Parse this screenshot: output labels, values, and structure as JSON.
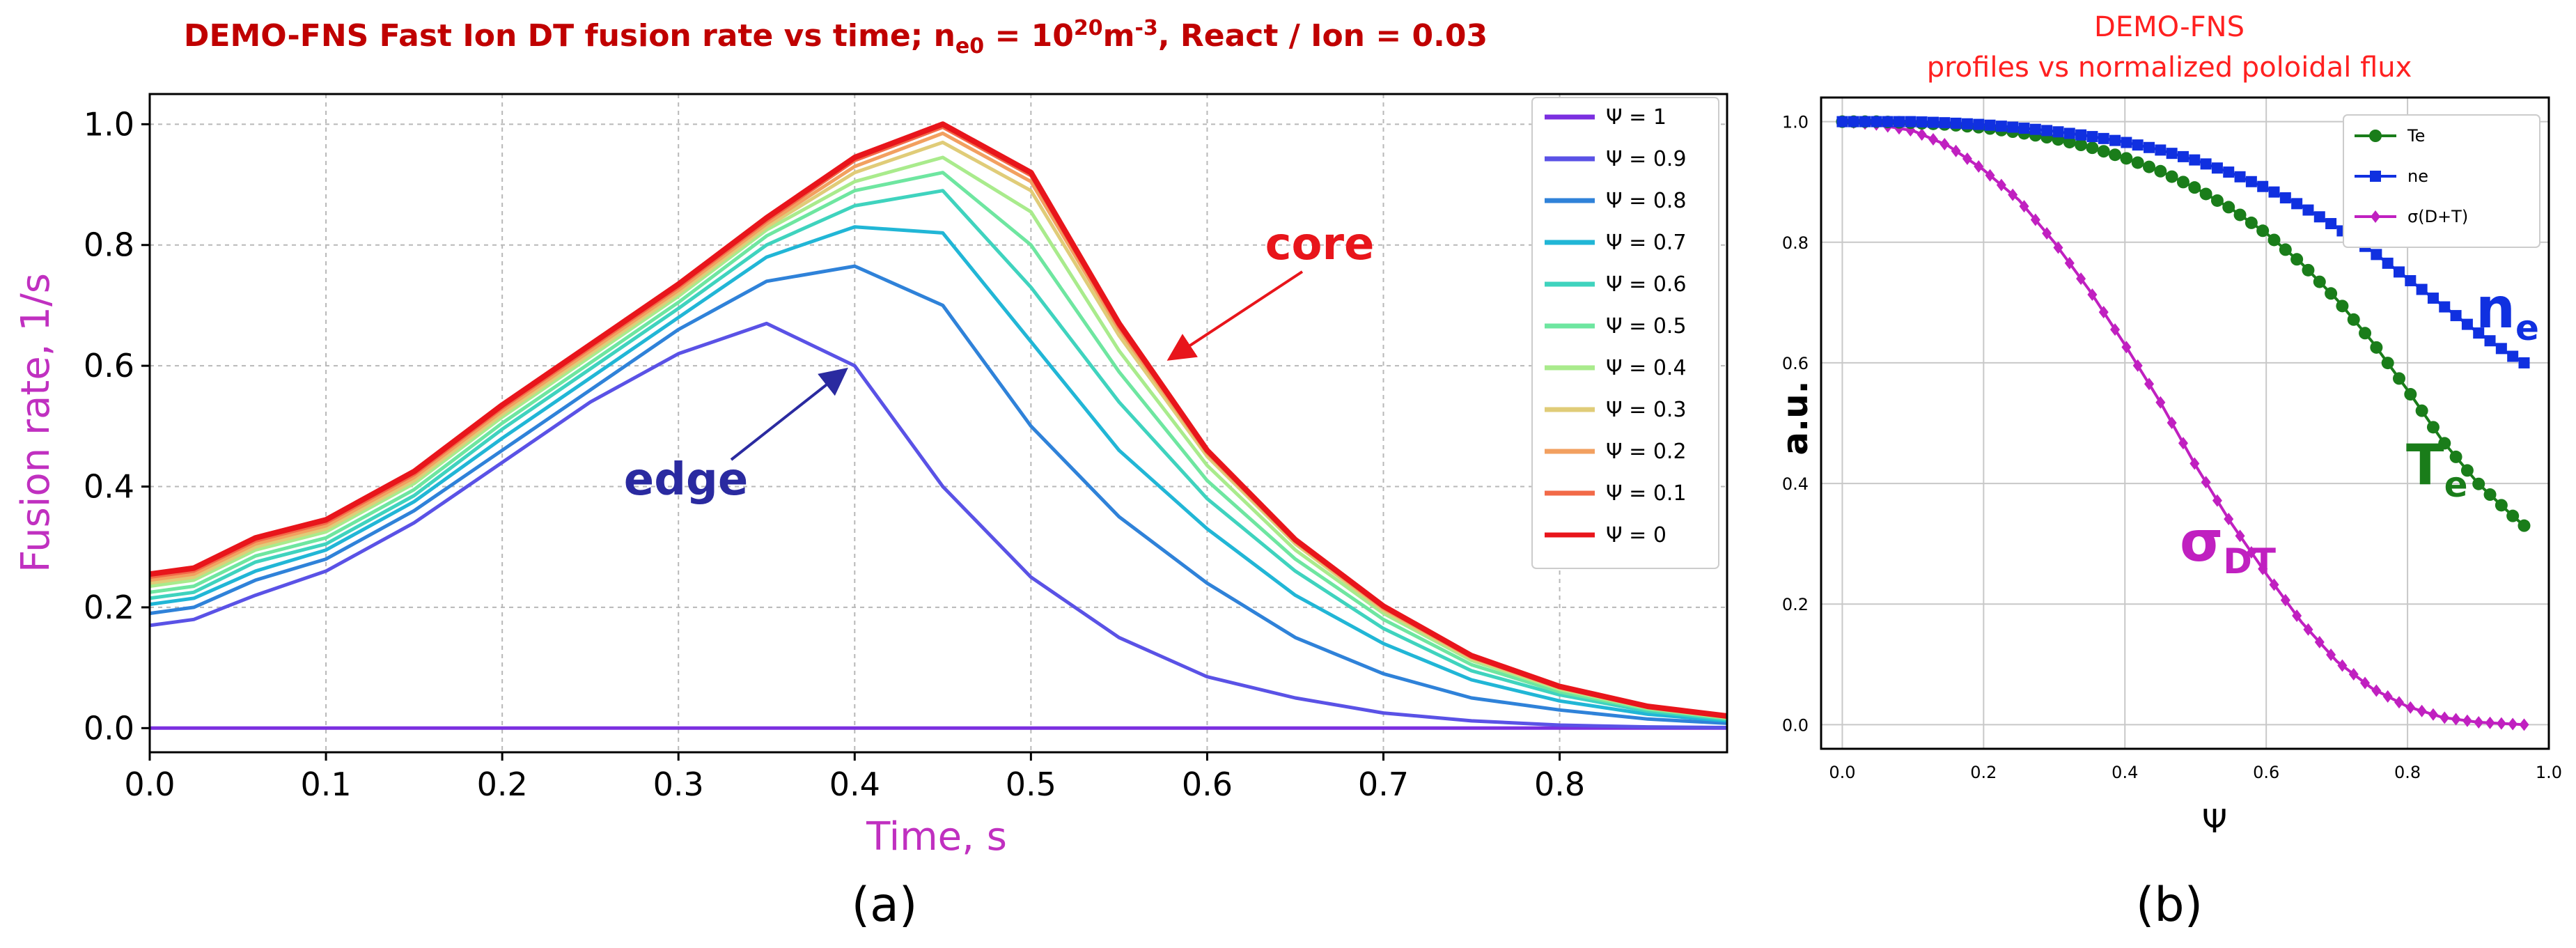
{
  "chart_data": [
    {
      "type": "line",
      "panel_label": "(a)",
      "title_parts": {
        "lead": "DEMO-FNS Fast Ion DT fusion rate vs time;  n",
        "sub": "e0",
        "mid": " = 10",
        "sup": "20",
        "unit": "m",
        "unit_sup": "-3",
        "tail": ", React / Ion = 0.03"
      },
      "xlabel": "Time, s",
      "ylabel": "Fusion rate, 1/s",
      "xlim": [
        0,
        0.895
      ],
      "ylim": [
        -0.04,
        1.05
      ],
      "xticks": [
        "0.0",
        "0.1",
        "0.2",
        "0.3",
        "0.4",
        "0.5",
        "0.6",
        "0.7",
        "0.8"
      ],
      "yticks": [
        "0.0",
        "0.2",
        "0.4",
        "0.6",
        "0.8",
        "1.0"
      ],
      "legend_position": "top-right",
      "x": [
        0,
        0.025,
        0.06,
        0.1,
        0.15,
        0.2,
        0.25,
        0.3,
        0.35,
        0.4,
        0.45,
        0.5,
        0.55,
        0.6,
        0.65,
        0.7,
        0.75,
        0.8,
        0.85,
        0.895
      ],
      "series": [
        {
          "name": "Ψ = 1",
          "color": "#7b2fe0",
          "values": [
            0,
            0,
            0,
            0,
            0,
            0,
            0,
            0,
            0,
            0,
            0,
            0,
            0,
            0,
            0,
            0,
            0,
            0,
            0,
            0
          ]
        },
        {
          "name": "Ψ = 0.9",
          "color": "#5a52e6",
          "values": [
            0.17,
            0.18,
            0.22,
            0.26,
            0.34,
            0.44,
            0.54,
            0.62,
            0.67,
            0.6,
            0.4,
            0.25,
            0.15,
            0.085,
            0.05,
            0.025,
            0.012,
            0.005,
            0.002,
            0.001
          ]
        },
        {
          "name": "Ψ = 0.8",
          "color": "#2f82d9",
          "values": [
            0.19,
            0.2,
            0.245,
            0.28,
            0.36,
            0.46,
            0.56,
            0.66,
            0.74,
            0.765,
            0.7,
            0.5,
            0.35,
            0.24,
            0.15,
            0.09,
            0.05,
            0.03,
            0.015,
            0.008
          ]
        },
        {
          "name": "Ψ = 0.7",
          "color": "#21b6d6",
          "values": [
            0.205,
            0.215,
            0.26,
            0.295,
            0.375,
            0.48,
            0.58,
            0.68,
            0.78,
            0.83,
            0.82,
            0.64,
            0.46,
            0.33,
            0.22,
            0.14,
            0.08,
            0.045,
            0.023,
            0.012
          ]
        },
        {
          "name": "Ψ = 0.6",
          "color": "#3fd3be",
          "values": [
            0.215,
            0.225,
            0.275,
            0.305,
            0.385,
            0.495,
            0.595,
            0.695,
            0.8,
            0.865,
            0.89,
            0.73,
            0.54,
            0.38,
            0.26,
            0.165,
            0.095,
            0.055,
            0.028,
            0.014
          ]
        },
        {
          "name": "Ψ = 0.5",
          "color": "#6ee6a0",
          "values": [
            0.225,
            0.235,
            0.285,
            0.315,
            0.395,
            0.505,
            0.605,
            0.705,
            0.815,
            0.89,
            0.92,
            0.8,
            0.59,
            0.41,
            0.28,
            0.18,
            0.105,
            0.06,
            0.031,
            0.016
          ]
        },
        {
          "name": "Ψ = 0.4",
          "color": "#a9eb8c",
          "values": [
            0.235,
            0.245,
            0.295,
            0.325,
            0.405,
            0.515,
            0.615,
            0.715,
            0.825,
            0.905,
            0.945,
            0.855,
            0.625,
            0.435,
            0.295,
            0.19,
            0.112,
            0.064,
            0.033,
            0.017
          ]
        },
        {
          "name": "Ψ = 0.3",
          "color": "#e0cc78",
          "values": [
            0.24,
            0.25,
            0.3,
            0.33,
            0.41,
            0.52,
            0.62,
            0.72,
            0.83,
            0.92,
            0.97,
            0.89,
            0.65,
            0.45,
            0.305,
            0.195,
            0.115,
            0.066,
            0.034,
            0.018
          ]
        },
        {
          "name": "Ψ = 0.2",
          "color": "#f2a060",
          "values": [
            0.245,
            0.255,
            0.305,
            0.335,
            0.415,
            0.525,
            0.625,
            0.725,
            0.835,
            0.93,
            0.985,
            0.905,
            0.66,
            0.455,
            0.308,
            0.198,
            0.117,
            0.067,
            0.035,
            0.019
          ]
        },
        {
          "name": "Ψ = 0.1",
          "color": "#f26a48",
          "values": [
            0.25,
            0.26,
            0.31,
            0.34,
            0.42,
            0.53,
            0.63,
            0.73,
            0.84,
            0.94,
            0.995,
            0.915,
            0.665,
            0.458,
            0.31,
            0.2,
            0.118,
            0.068,
            0.035,
            0.019
          ]
        },
        {
          "name": "Ψ = 0",
          "color": "#e8151b",
          "values": [
            0.255,
            0.265,
            0.315,
            0.345,
            0.425,
            0.535,
            0.635,
            0.735,
            0.845,
            0.945,
            1.0,
            0.92,
            0.67,
            0.46,
            0.312,
            0.202,
            0.12,
            0.069,
            0.036,
            0.02
          ]
        }
      ],
      "annotations": [
        {
          "text": "core",
          "color": "#e8151b",
          "x": 0.58,
          "y": 0.82,
          "arrow_to": [
            0.562,
            0.625
          ]
        },
        {
          "text": "edge",
          "color": "#2a2aa0",
          "x": 0.335,
          "y": 0.325,
          "arrow_to": [
            0.378,
            0.62
          ]
        }
      ]
    },
    {
      "type": "line",
      "panel_label": "(b)",
      "title": [
        "DEMO-FNS",
        "profiles vs normalized poloidal flux"
      ],
      "xlabel": "Ψ",
      "ylabel": "a.u.",
      "xlim": [
        -0.03,
        1.0
      ],
      "ylim": [
        -0.04,
        1.04
      ],
      "xticks": [
        "0.0",
        "0.2",
        "0.4",
        "0.6",
        "0.8",
        "1.0"
      ],
      "yticks": [
        "0.0",
        "0.2",
        "0.4",
        "0.6",
        "0.8",
        "1.0"
      ],
      "legend_position": "top-right",
      "x": [
        0,
        0.05,
        0.1,
        0.15,
        0.2,
        0.25,
        0.3,
        0.35,
        0.4,
        0.45,
        0.5,
        0.55,
        0.6,
        0.65,
        0.7,
        0.75,
        0.8,
        0.85,
        0.9,
        0.95,
        0.965
      ],
      "series": [
        {
          "name": "Te",
          "color": "#1a7d1a",
          "marker": "circle",
          "values": [
            1.0,
            1.0,
            0.998,
            0.995,
            0.99,
            0.982,
            0.972,
            0.958,
            0.94,
            0.918,
            0.89,
            0.856,
            0.815,
            0.765,
            0.705,
            0.635,
            0.555,
            0.47,
            0.4,
            0.345,
            0.33
          ]
        },
        {
          "name": "ne",
          "color": "#1030e0",
          "marker": "square",
          "values": [
            1.0,
            1.0,
            1.0,
            0.998,
            0.995,
            0.99,
            0.984,
            0.976,
            0.966,
            0.953,
            0.936,
            0.915,
            0.89,
            0.86,
            0.825,
            0.785,
            0.74,
            0.695,
            0.65,
            0.61,
            0.6
          ]
        },
        {
          "name": "σ(D+T)",
          "color": "#c020c0",
          "marker": "diamond",
          "values": [
            1.0,
            0.995,
            0.985,
            0.96,
            0.92,
            0.87,
            0.8,
            0.72,
            0.63,
            0.535,
            0.43,
            0.335,
            0.25,
            0.17,
            0.105,
            0.06,
            0.03,
            0.012,
            0.004,
            0.001,
            0.0
          ]
        }
      ],
      "annotations": [
        {
          "text": "n",
          "sub": "e",
          "color": "#1030e0"
        },
        {
          "text": "T",
          "sub": "e",
          "color": "#1a7d1a"
        },
        {
          "text": "σ",
          "sub": "DT",
          "color": "#c020c0"
        }
      ]
    }
  ]
}
